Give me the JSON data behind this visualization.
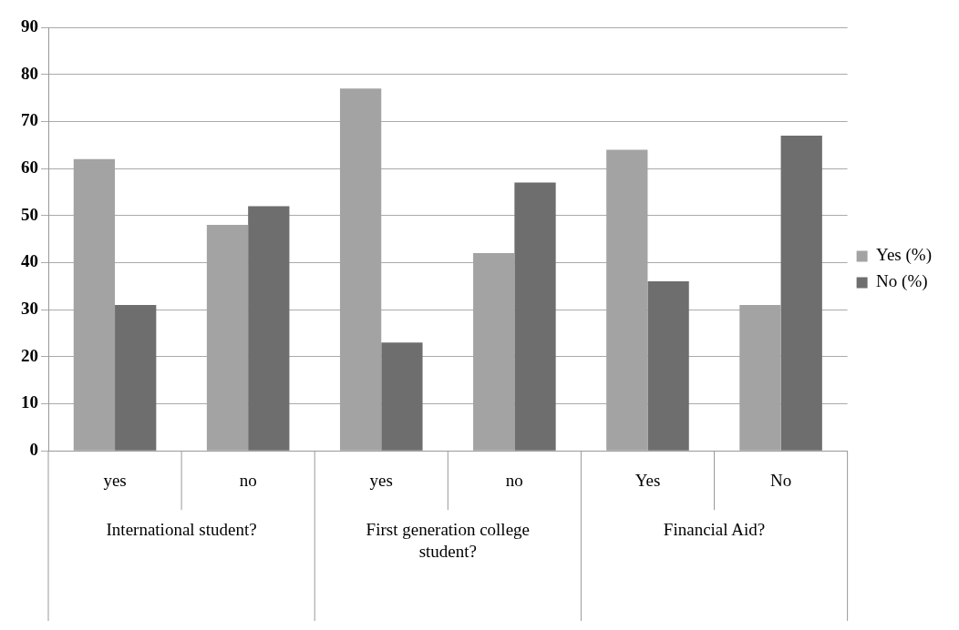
{
  "chart_data": {
    "type": "bar",
    "categories": [
      "yes",
      "no",
      "yes",
      "no",
      "Yes",
      "No"
    ],
    "series": [
      {
        "name": "Yes (%)",
        "color": "#a3a3a3",
        "values": [
          62,
          48,
          77,
          42,
          64,
          31
        ]
      },
      {
        "name": "No (%)",
        "color": "#6e6e6e",
        "values": [
          31,
          52,
          23,
          57,
          36,
          67
        ]
      }
    ],
    "ylim": [
      0,
      90
    ],
    "yticks": [
      0,
      10,
      20,
      30,
      40,
      50,
      60,
      70,
      80,
      90
    ],
    "grid": "y",
    "legend": "right",
    "annotations": [
      "International student?",
      "First generation college student?",
      "Financial Aid?"
    ]
  }
}
